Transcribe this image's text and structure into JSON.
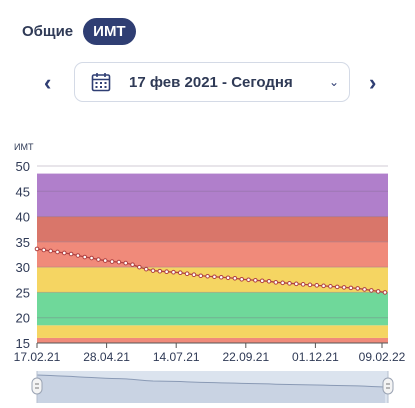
{
  "tabs": [
    {
      "label": "Общие",
      "active": false
    },
    {
      "label": "ИМТ",
      "active": true
    }
  ],
  "date_range": {
    "label": "17 фев 2021 - Сегодня",
    "prev_icon": "chevron-left-icon",
    "next_icon": "chevron-right-icon",
    "calendar_icon": "calendar-icon"
  },
  "chart_data": {
    "type": "line",
    "ylabel": "ИМТ",
    "ylim": [
      15,
      50
    ],
    "yticks": [
      15,
      20,
      25,
      30,
      35,
      40,
      45,
      50
    ],
    "xticks": [
      "17.02.21",
      "28.04.21",
      "14.07.21",
      "22.09.21",
      "01.12.21",
      "09.02.22"
    ],
    "xrange": [
      "2021-02-17",
      "2022-02-09"
    ],
    "bands": [
      {
        "from": 15,
        "to": 16,
        "color": "#f08a7a"
      },
      {
        "from": 16,
        "to": 18.5,
        "color": "#f5d562"
      },
      {
        "from": 18.5,
        "to": 25,
        "color": "#6fd89a"
      },
      {
        "from": 25,
        "to": 30,
        "color": "#f5d562"
      },
      {
        "from": 30,
        "to": 35,
        "color": "#f08a7a"
      },
      {
        "from": 35,
        "to": 40,
        "color": "#d9766a"
      },
      {
        "from": 40,
        "to": 48.5,
        "color": "#b07fcb"
      }
    ],
    "series": [
      {
        "line_color": "#b04040",
        "x": [
          "2021-02-17",
          "2021-02-24",
          "2021-03-03",
          "2021-03-10",
          "2021-03-17",
          "2021-03-24",
          "2021-03-31",
          "2021-04-07",
          "2021-04-14",
          "2021-04-21",
          "2021-04-28",
          "2021-05-05",
          "2021-05-12",
          "2021-05-19",
          "2021-05-26",
          "2021-06-02",
          "2021-06-09",
          "2021-06-16",
          "2021-06-23",
          "2021-06-30",
          "2021-07-07",
          "2021-07-14",
          "2021-07-21",
          "2021-07-28",
          "2021-08-04",
          "2021-08-11",
          "2021-08-18",
          "2021-08-25",
          "2021-09-01",
          "2021-09-08",
          "2021-09-15",
          "2021-09-22",
          "2021-09-29",
          "2021-10-06",
          "2021-10-13",
          "2021-10-20",
          "2021-10-27",
          "2021-11-03",
          "2021-11-10",
          "2021-11-17",
          "2021-11-24",
          "2021-12-01",
          "2021-12-08",
          "2021-12-15",
          "2021-12-22",
          "2021-12-29",
          "2022-01-05",
          "2022-01-12",
          "2022-01-19",
          "2022-01-26",
          "2022-02-02",
          "2022-02-09"
        ],
        "values": [
          33.6,
          33.4,
          33.2,
          33.0,
          32.8,
          32.6,
          32.3,
          32.0,
          31.8,
          31.5,
          31.3,
          31.1,
          31.0,
          30.8,
          30.5,
          30.0,
          29.6,
          29.3,
          29.2,
          29.1,
          29.0,
          28.9,
          28.7,
          28.5,
          28.3,
          28.2,
          28.1,
          28.0,
          27.9,
          27.8,
          27.6,
          27.5,
          27.4,
          27.3,
          27.2,
          27.0,
          26.9,
          26.8,
          26.7,
          26.6,
          26.5,
          26.4,
          26.3,
          26.2,
          26.1,
          26.0,
          25.9,
          25.8,
          25.6,
          25.4,
          25.2,
          25.0
        ]
      }
    ]
  },
  "navigator": {
    "handle_left_icon": "drag-handle-icon",
    "handle_right_icon": "drag-handle-icon"
  }
}
